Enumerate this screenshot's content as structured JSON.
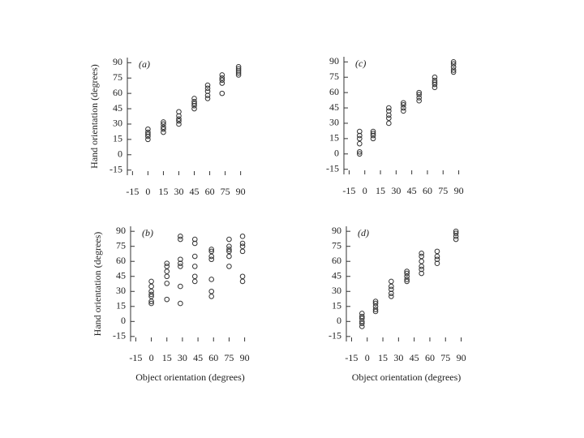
{
  "chart_data": [
    {
      "type": "scatter",
      "panel": "(a)",
      "ylabel": "Hand orientation (degrees)",
      "color": "#333333",
      "xlim": [
        -20,
        95
      ],
      "ylim": [
        -20,
        95
      ],
      "xticks": [
        -15,
        0,
        15,
        30,
        45,
        60,
        75,
        90
      ],
      "yticks": [
        -15,
        0,
        15,
        30,
        45,
        60,
        75,
        90
      ],
      "x": [
        0,
        0,
        0,
        0,
        0,
        15,
        15,
        15,
        15,
        15,
        30,
        30,
        30,
        30,
        30,
        45,
        45,
        45,
        45,
        45,
        58,
        58,
        58,
        58,
        58,
        72,
        72,
        72,
        72,
        72,
        88,
        88,
        88,
        88,
        88
      ],
      "values": [
        15,
        18,
        20,
        22,
        25,
        22,
        25,
        27,
        30,
        32,
        30,
        33,
        35,
        38,
        42,
        45,
        48,
        50,
        52,
        55,
        55,
        58,
        62,
        65,
        68,
        60,
        70,
        73,
        75,
        78,
        78,
        80,
        82,
        84,
        86
      ]
    },
    {
      "type": "scatter",
      "panel": "(c)",
      "color": "#333333",
      "xlim": [
        -20,
        95
      ],
      "ylim": [
        -20,
        95
      ],
      "xticks": [
        -15,
        0,
        15,
        30,
        45,
        60,
        75,
        90
      ],
      "yticks": [
        -15,
        0,
        15,
        30,
        45,
        60,
        75,
        90
      ],
      "x": [
        -5,
        -5,
        -5,
        -5,
        -5,
        -5,
        8,
        8,
        8,
        8,
        23,
        23,
        23,
        23,
        23,
        37,
        37,
        37,
        37,
        52,
        52,
        52,
        52,
        67,
        67,
        67,
        67,
        67,
        85,
        85,
        85,
        85,
        85
      ],
      "values": [
        0,
        2,
        10,
        15,
        18,
        22,
        15,
        18,
        20,
        22,
        30,
        35,
        38,
        42,
        45,
        42,
        45,
        48,
        50,
        52,
        55,
        58,
        60,
        65,
        68,
        70,
        72,
        75,
        80,
        82,
        85,
        88,
        90
      ]
    },
    {
      "type": "scatter",
      "panel": "(b)",
      "ylabel": "Hand orientation (degrees)",
      "xlabel": "Object orientation (degrees)",
      "color": "#333333",
      "xlim": [
        -20,
        95
      ],
      "ylim": [
        -20,
        95
      ],
      "xticks": [
        -15,
        0,
        15,
        30,
        45,
        60,
        75,
        90
      ],
      "yticks": [
        -15,
        0,
        15,
        30,
        45,
        60,
        75,
        90
      ],
      "x": [
        0,
        0,
        0,
        0,
        0,
        0,
        0,
        15,
        15,
        15,
        15,
        15,
        15,
        28,
        28,
        28,
        28,
        28,
        28,
        28,
        42,
        42,
        42,
        42,
        42,
        42,
        58,
        58,
        58,
        58,
        58,
        58,
        58,
        75,
        75,
        75,
        75,
        75,
        75,
        88,
        88,
        88,
        88,
        88,
        88
      ],
      "values": [
        18,
        20,
        25,
        27,
        30,
        35,
        40,
        22,
        38,
        45,
        50,
        55,
        58,
        18,
        35,
        55,
        58,
        62,
        82,
        85,
        40,
        45,
        55,
        65,
        78,
        82,
        25,
        30,
        42,
        62,
        65,
        70,
        72,
        55,
        65,
        70,
        72,
        75,
        82,
        40,
        45,
        70,
        75,
        78,
        85
      ]
    },
    {
      "type": "scatter",
      "panel": "(d)",
      "xlabel": "Object orientation (degrees)",
      "color": "#333333",
      "xlim": [
        -20,
        95
      ],
      "ylim": [
        -20,
        95
      ],
      "xticks": [
        -15,
        0,
        15,
        30,
        45,
        60,
        75,
        90
      ],
      "yticks": [
        -15,
        0,
        15,
        30,
        45,
        60,
        75,
        90
      ],
      "x": [
        -5,
        -5,
        -5,
        -5,
        -5,
        -5,
        8,
        8,
        8,
        8,
        8,
        23,
        23,
        23,
        23,
        23,
        38,
        38,
        38,
        38,
        38,
        52,
        52,
        52,
        52,
        52,
        52,
        67,
        67,
        67,
        67,
        85,
        85,
        85,
        85
      ],
      "values": [
        -5,
        -2,
        0,
        3,
        5,
        8,
        10,
        12,
        15,
        18,
        20,
        25,
        28,
        32,
        35,
        40,
        40,
        42,
        45,
        48,
        50,
        48,
        52,
        55,
        60,
        65,
        68,
        58,
        62,
        65,
        70,
        82,
        85,
        88,
        90
      ]
    }
  ]
}
